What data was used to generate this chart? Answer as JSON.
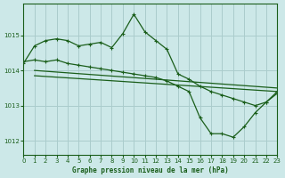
{
  "title": "Graphe pression niveau de la mer (hPa)",
  "bg_color": "#cce8e8",
  "grid_color": "#aacccc",
  "line_color": "#1a5e1a",
  "xlim": [
    0,
    23
  ],
  "ylim": [
    1011.6,
    1015.9
  ],
  "yticks": [
    1012,
    1013,
    1014,
    1015
  ],
  "xticks": [
    0,
    1,
    2,
    3,
    4,
    5,
    6,
    7,
    8,
    9,
    10,
    11,
    12,
    13,
    14,
    15,
    16,
    17,
    18,
    19,
    20,
    21,
    22,
    23
  ],
  "series_top": {
    "x": [
      0,
      1,
      2,
      3,
      4,
      5,
      6,
      7,
      8,
      9,
      10,
      11,
      12,
      13,
      14,
      15,
      16,
      17,
      18,
      19,
      20,
      21,
      22,
      23
    ],
    "y": [
      1014.2,
      1014.7,
      1014.85,
      1014.9,
      1014.85,
      1014.7,
      1014.75,
      1014.8,
      1014.65,
      1015.05,
      1015.6,
      1015.1,
      1014.85,
      1014.6,
      1013.9,
      1013.75,
      1013.55,
      1013.4,
      1013.3,
      1013.2,
      1013.1,
      1013.0,
      1013.1,
      1013.4
    ]
  },
  "series_mid": {
    "x": [
      0,
      1,
      2,
      3,
      4,
      5,
      6,
      7,
      8,
      9,
      10,
      11,
      12,
      13,
      14,
      15,
      16,
      17,
      18,
      19,
      20,
      21,
      22,
      23
    ],
    "y": [
      1014.25,
      1014.3,
      1014.25,
      1014.3,
      1014.2,
      1014.15,
      1014.1,
      1014.05,
      1014.0,
      1013.95,
      1013.9,
      1013.85,
      1013.8,
      1013.7,
      1013.55,
      1013.4,
      1012.65,
      1012.2,
      1012.2,
      1012.1,
      1012.4,
      1012.8,
      1013.1,
      1013.35
    ]
  },
  "series_diag1": {
    "x": [
      1,
      23
    ],
    "y": [
      1014.0,
      1013.5
    ]
  },
  "series_diag2": {
    "x": [
      1,
      23
    ],
    "y": [
      1013.85,
      1013.4
    ]
  }
}
